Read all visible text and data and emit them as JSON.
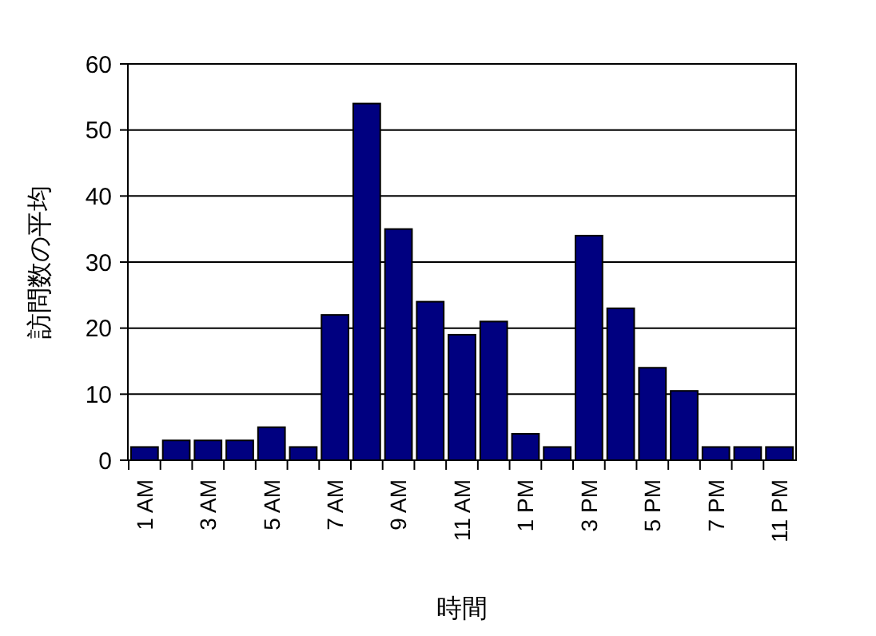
{
  "chart_data": {
    "type": "bar",
    "xlabel": "時間",
    "ylabel": "訪問数の平均",
    "categories": [
      "1 AM",
      null,
      "3 AM",
      null,
      "5 AM",
      null,
      "7 AM",
      null,
      "9 AM",
      null,
      "11 AM",
      null,
      "1 PM",
      null,
      "3 PM",
      null,
      "5 PM",
      null,
      "7 PM",
      null,
      "11 PM"
    ],
    "values": [
      2,
      3,
      3,
      3,
      5,
      2,
      22,
      54,
      35,
      24,
      19,
      21,
      4,
      2,
      34,
      23,
      14,
      10.5,
      2,
      2,
      2
    ],
    "color": "#000080",
    "ylim": [
      0,
      60
    ],
    "yticks": [
      0,
      10,
      20,
      30,
      40,
      50,
      60
    ],
    "grid": "y"
  }
}
